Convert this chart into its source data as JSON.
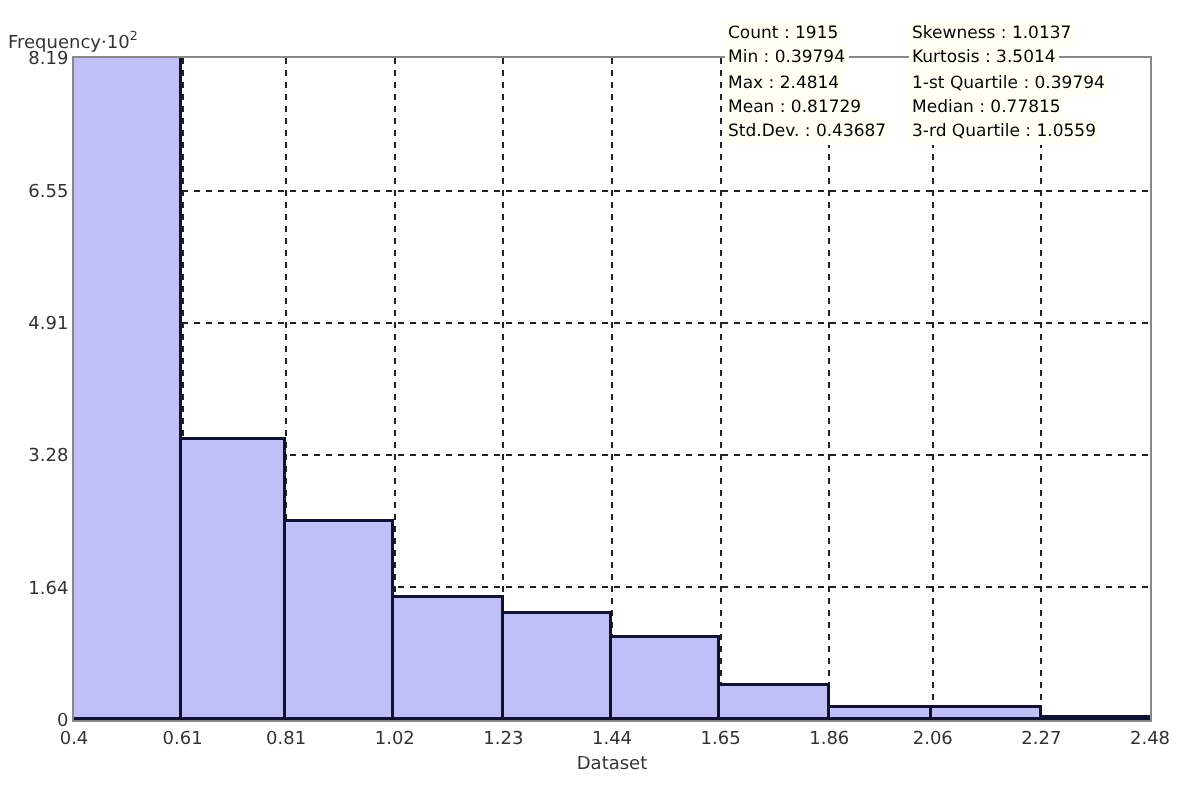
{
  "chart_data": {
    "type": "histogram",
    "xlabel": "Dataset",
    "ylabel": "Frequency·10$^{2}$",
    "bins": [
      0.4,
      0.61,
      0.81,
      1.02,
      1.23,
      1.44,
      1.65,
      1.86,
      2.06,
      2.27,
      2.48
    ],
    "values": [
      8.19,
      3.46,
      2.44,
      1.5,
      1.31,
      1.01,
      0.42,
      0.15,
      0.15,
      0.02
    ],
    "color": "#c0c0f8",
    "xlim": [
      0.4,
      2.48
    ],
    "xticks": [
      0.4,
      0.61,
      0.81,
      1.02,
      1.23,
      1.44,
      1.65,
      1.86,
      2.06,
      2.27,
      2.48
    ],
    "ylim": [
      0,
      8.19
    ],
    "yticks": [
      0,
      1.64,
      3.28,
      4.91,
      6.55,
      8.19
    ],
    "grid": true,
    "annotations": [
      "Count : 1915",
      "Min : 0.39794",
      "Max : 2.4814",
      "Mean : 0.81729",
      "Std.Dev. : 0.43687",
      "Skewness : 1.0137",
      "Kurtosis : 3.5014",
      "1-st Quartile : 0.39794",
      "Median : 0.77815",
      "3-rd Quartile : 1.0559"
    ]
  }
}
